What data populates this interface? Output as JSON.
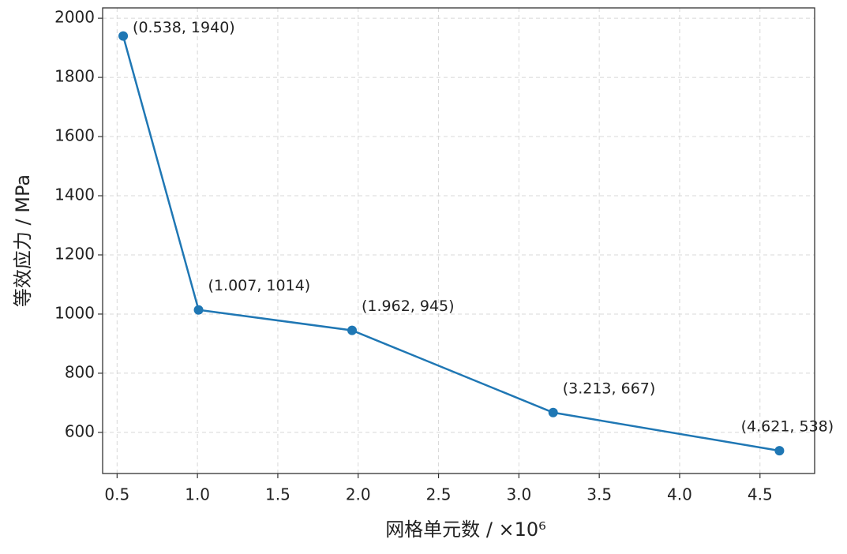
{
  "chart_data": {
    "type": "line",
    "xlabel": "网格单元数 / ×10⁶",
    "ylabel": "等效应力 / MPa",
    "x": [
      0.538,
      1.007,
      1.962,
      3.213,
      4.621
    ],
    "values": [
      1940,
      1014,
      945,
      667,
      538
    ],
    "value_labels": [
      "(0.538, 1940)",
      "(1.007, 1014)",
      "(1.962, 945)",
      "(3.213, 667)",
      "(4.621, 538)"
    ],
    "color": "#1f77b4",
    "xlim": [
      0.41,
      4.84
    ],
    "xticks": [
      0.5,
      {
        "value": 1,
        "label": "1.0"
      },
      1.5,
      {
        "value": 2,
        "label": "2.0"
      },
      2.5,
      {
        "value": 3,
        "label": "3.0"
      },
      3.5,
      {
        "value": 4,
        "label": "4.0"
      },
      4.5
    ],
    "ylim": [
      461,
      2035
    ],
    "yticks": [
      600,
      800,
      1000,
      1200,
      1400,
      1600,
      1800,
      2000
    ],
    "grid": true
  }
}
